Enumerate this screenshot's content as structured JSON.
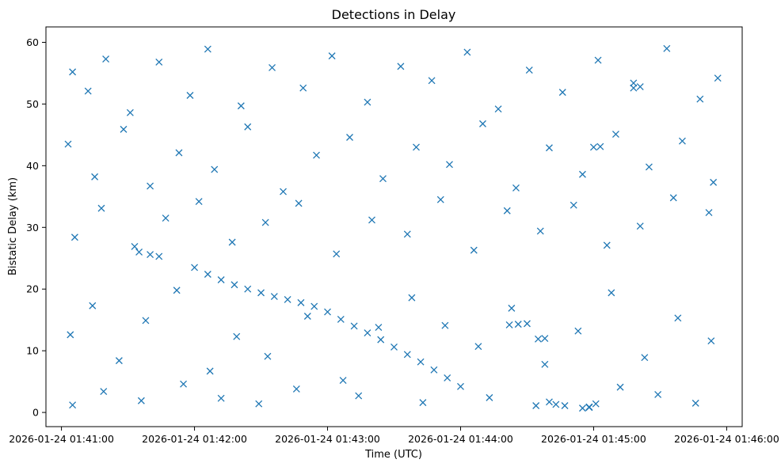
{
  "chart_data": {
    "type": "scatter",
    "title": "Detections in Delay",
    "xlabel": "Time (UTC)",
    "ylabel": "Bistatic Delay (km)",
    "x_ticks": [
      "2026-01-24 01:41:00",
      "2026-01-24 01:42:00",
      "2026-01-24 01:43:00",
      "2026-01-24 01:44:00",
      "2026-01-24 01:45:00",
      "2026-01-24 01:46:00"
    ],
    "y_ticks": [
      0,
      10,
      20,
      30,
      40,
      50,
      60
    ],
    "xlim": [
      "2026-01-24 01:40:53",
      "2026-01-24 01:46:07"
    ],
    "ylim": [
      -2.3,
      62.5
    ],
    "grid": false,
    "marker": "x",
    "color": "#1f77b4",
    "series": [
      {
        "points": [
          [
            "2026-01-24 01:41:05",
            55.2
          ],
          [
            "2026-01-24 01:41:12",
            52.1
          ],
          [
            "2026-01-24 01:41:20",
            57.3
          ],
          [
            "2026-01-24 01:41:31",
            48.6
          ],
          [
            "2026-01-24 01:41:44",
            56.8
          ],
          [
            "2026-01-24 01:41:58",
            51.4
          ],
          [
            "2026-01-24 01:42:06",
            58.9
          ],
          [
            "2026-01-24 01:42:21",
            49.7
          ],
          [
            "2026-01-24 01:42:35",
            55.9
          ],
          [
            "2026-01-24 01:42:49",
            52.6
          ],
          [
            "2026-01-24 01:43:02",
            57.8
          ],
          [
            "2026-01-24 01:43:18",
            50.3
          ],
          [
            "2026-01-24 01:43:33",
            56.1
          ],
          [
            "2026-01-24 01:43:47",
            53.8
          ],
          [
            "2026-01-24 01:44:03",
            58.4
          ],
          [
            "2026-01-24 01:44:17",
            49.2
          ],
          [
            "2026-01-24 01:44:31",
            55.5
          ],
          [
            "2026-01-24 01:44:46",
            51.9
          ],
          [
            "2026-01-24 01:45:02",
            57.1
          ],
          [
            "2026-01-24 01:45:18",
            53.4
          ],
          [
            "2026-01-24 01:45:33",
            59.0
          ],
          [
            "2026-01-24 01:45:48",
            50.8
          ],
          [
            "2026-01-24 01:45:56",
            54.2
          ],
          [
            "2026-01-24 01:41:03",
            43.5
          ],
          [
            "2026-01-24 01:41:15",
            38.2
          ],
          [
            "2026-01-24 01:41:28",
            45.9
          ],
          [
            "2026-01-24 01:41:40",
            36.7
          ],
          [
            "2026-01-24 01:41:53",
            42.1
          ],
          [
            "2026-01-24 01:42:09",
            39.4
          ],
          [
            "2026-01-24 01:42:24",
            46.3
          ],
          [
            "2026-01-24 01:42:40",
            35.8
          ],
          [
            "2026-01-24 01:42:55",
            41.7
          ],
          [
            "2026-01-24 01:43:10",
            44.6
          ],
          [
            "2026-01-24 01:43:25",
            37.9
          ],
          [
            "2026-01-24 01:43:40",
            43.0
          ],
          [
            "2026-01-24 01:43:55",
            40.2
          ],
          [
            "2026-01-24 01:44:10",
            46.8
          ],
          [
            "2026-01-24 01:44:25",
            36.4
          ],
          [
            "2026-01-24 01:44:40",
            42.9
          ],
          [
            "2026-01-24 01:44:55",
            38.6
          ],
          [
            "2026-01-24 01:45:10",
            45.1
          ],
          [
            "2026-01-24 01:45:25",
            39.8
          ],
          [
            "2026-01-24 01:45:40",
            44.0
          ],
          [
            "2026-01-24 01:45:54",
            37.3
          ],
          [
            "2026-01-24 01:41:06",
            28.4
          ],
          [
            "2026-01-24 01:41:18",
            33.1
          ],
          [
            "2026-01-24 01:41:33",
            26.9
          ],
          [
            "2026-01-24 01:41:47",
            31.5
          ],
          [
            "2026-01-24 01:42:02",
            34.2
          ],
          [
            "2026-01-24 01:42:17",
            27.6
          ],
          [
            "2026-01-24 01:42:32",
            30.8
          ],
          [
            "2026-01-24 01:42:47",
            33.9
          ],
          [
            "2026-01-24 01:43:04",
            25.7
          ],
          [
            "2026-01-24 01:43:20",
            31.2
          ],
          [
            "2026-01-24 01:43:36",
            28.9
          ],
          [
            "2026-01-24 01:43:51",
            34.5
          ],
          [
            "2026-01-24 01:44:06",
            26.3
          ],
          [
            "2026-01-24 01:44:21",
            32.7
          ],
          [
            "2026-01-24 01:44:36",
            29.4
          ],
          [
            "2026-01-24 01:44:51",
            33.6
          ],
          [
            "2026-01-24 01:45:06",
            27.1
          ],
          [
            "2026-01-24 01:45:21",
            30.2
          ],
          [
            "2026-01-24 01:45:36",
            34.8
          ],
          [
            "2026-01-24 01:45:52",
            32.4
          ],
          [
            "2026-01-24 01:41:04",
            12.6
          ],
          [
            "2026-01-24 01:41:14",
            17.3
          ],
          [
            "2026-01-24 01:41:26",
            8.4
          ],
          [
            "2026-01-24 01:41:38",
            14.9
          ],
          [
            "2026-01-24 01:41:52",
            19.8
          ],
          [
            "2026-01-24 01:42:07",
            6.7
          ],
          [
            "2026-01-24 01:42:19",
            12.3
          ],
          [
            "2026-01-24 01:42:33",
            9.1
          ],
          [
            "2026-01-24 01:42:51",
            15.6
          ],
          [
            "2026-01-24 01:43:07",
            5.2
          ],
          [
            "2026-01-24 01:43:23",
            13.8
          ],
          [
            "2026-01-24 01:43:38",
            18.6
          ],
          [
            "2026-01-24 01:43:53",
            14.1
          ],
          [
            "2026-01-24 01:44:08",
            10.7
          ],
          [
            "2026-01-24 01:44:23",
            16.9
          ],
          [
            "2026-01-24 01:44:38",
            7.8
          ],
          [
            "2026-01-24 01:44:53",
            13.2
          ],
          [
            "2026-01-24 01:45:08",
            19.4
          ],
          [
            "2026-01-24 01:45:23",
            8.9
          ],
          [
            "2026-01-24 01:45:38",
            15.3
          ],
          [
            "2026-01-24 01:45:53",
            11.6
          ],
          [
            "2026-01-24 01:41:05",
            1.2
          ],
          [
            "2026-01-24 01:41:19",
            3.4
          ],
          [
            "2026-01-24 01:41:36",
            1.9
          ],
          [
            "2026-01-24 01:41:55",
            4.6
          ],
          [
            "2026-01-24 01:42:12",
            2.3
          ],
          [
            "2026-01-24 01:42:29",
            1.4
          ],
          [
            "2026-01-24 01:42:46",
            3.8
          ],
          [
            "2026-01-24 01:43:14",
            2.7
          ],
          [
            "2026-01-24 01:43:43",
            1.6
          ],
          [
            "2026-01-24 01:44:13",
            2.4
          ],
          [
            "2026-01-24 01:44:34",
            1.1
          ],
          [
            "2026-01-24 01:44:58",
            0.8
          ],
          [
            "2026-01-24 01:45:12",
            4.1
          ],
          [
            "2026-01-24 01:45:29",
            2.9
          ],
          [
            "2026-01-24 01:45:46",
            1.5
          ],
          [
            "2026-01-24 01:41:35",
            26.0
          ],
          [
            "2026-01-24 01:41:40",
            25.6
          ],
          [
            "2026-01-24 01:41:44",
            25.3
          ],
          [
            "2026-01-24 01:44:40",
            1.7
          ],
          [
            "2026-01-24 01:44:43",
            1.3
          ],
          [
            "2026-01-24 01:44:47",
            1.1
          ],
          [
            "2026-01-24 01:44:55",
            0.7
          ],
          [
            "2026-01-24 01:44:58",
            0.9
          ],
          [
            "2026-01-24 01:45:01",
            1.4
          ],
          [
            "2026-01-24 01:44:22",
            14.2
          ],
          [
            "2026-01-24 01:44:26",
            14.3
          ],
          [
            "2026-01-24 01:44:30",
            14.4
          ],
          [
            "2026-01-24 01:44:35",
            11.9
          ],
          [
            "2026-01-24 01:44:38",
            12.0
          ],
          [
            "2026-01-24 01:45:00",
            43.0
          ],
          [
            "2026-01-24 01:45:03",
            43.1
          ],
          [
            "2026-01-24 01:45:18",
            52.6
          ],
          [
            "2026-01-24 01:45:21",
            52.8
          ],
          [
            "2026-01-24 01:42:00",
            23.5
          ],
          [
            "2026-01-24 01:42:06",
            22.4
          ],
          [
            "2026-01-24 01:42:12",
            21.5
          ],
          [
            "2026-01-24 01:42:18",
            20.7
          ],
          [
            "2026-01-24 01:42:24",
            20.0
          ],
          [
            "2026-01-24 01:42:30",
            19.4
          ],
          [
            "2026-01-24 01:42:36",
            18.8
          ],
          [
            "2026-01-24 01:42:42",
            18.3
          ],
          [
            "2026-01-24 01:42:48",
            17.8
          ],
          [
            "2026-01-24 01:42:54",
            17.2
          ],
          [
            "2026-01-24 01:43:00",
            16.3
          ],
          [
            "2026-01-24 01:43:06",
            15.1
          ],
          [
            "2026-01-24 01:43:12",
            14.0
          ],
          [
            "2026-01-24 01:43:18",
            12.9
          ],
          [
            "2026-01-24 01:43:24",
            11.8
          ],
          [
            "2026-01-24 01:43:30",
            10.6
          ],
          [
            "2026-01-24 01:43:36",
            9.4
          ],
          [
            "2026-01-24 01:43:42",
            8.2
          ],
          [
            "2026-01-24 01:43:48",
            6.9
          ],
          [
            "2026-01-24 01:43:54",
            5.6
          ],
          [
            "2026-01-24 01:44:00",
            4.2
          ]
        ]
      }
    ]
  }
}
